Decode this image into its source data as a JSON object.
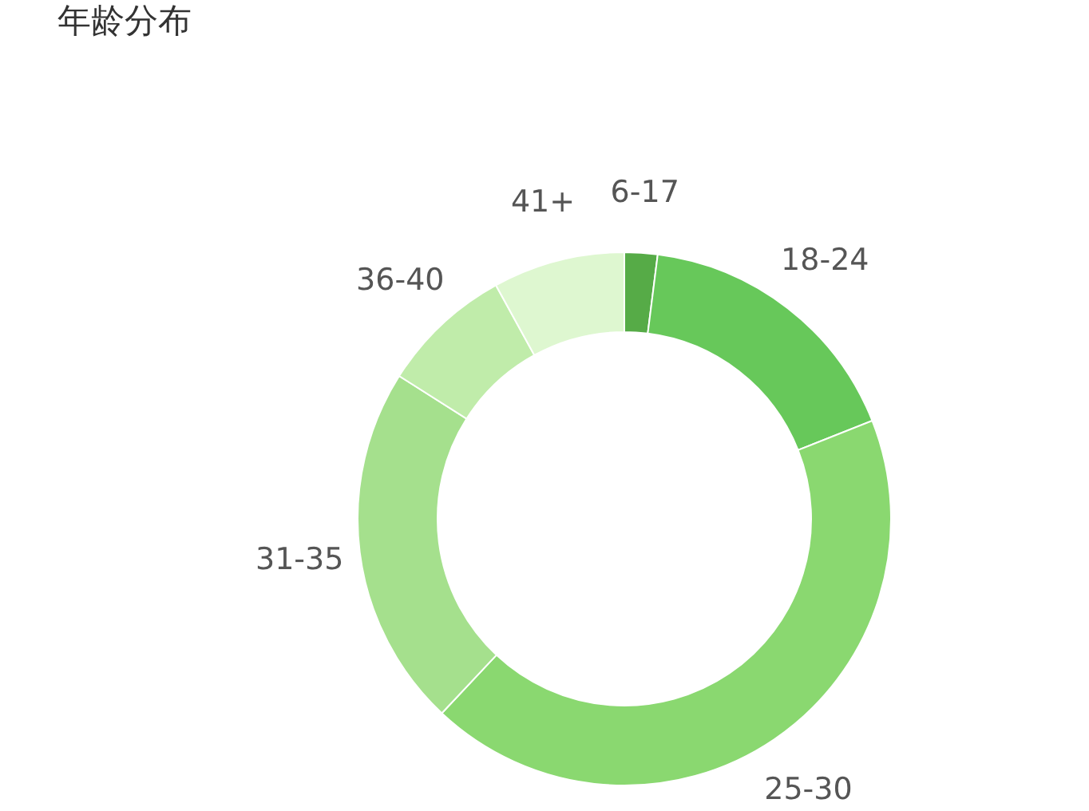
{
  "chart_data": {
    "type": "donut",
    "title": "年龄分布",
    "categories": [
      "6-17",
      "18-24",
      "25-30",
      "31-35",
      "36-40",
      "41+"
    ],
    "values": [
      2,
      17,
      43,
      22,
      8,
      8
    ],
    "colors": [
      "#56ab47",
      "#67c85a",
      "#8ad870",
      "#a5e08d",
      "#c0ecaa",
      "#def7d0"
    ]
  }
}
